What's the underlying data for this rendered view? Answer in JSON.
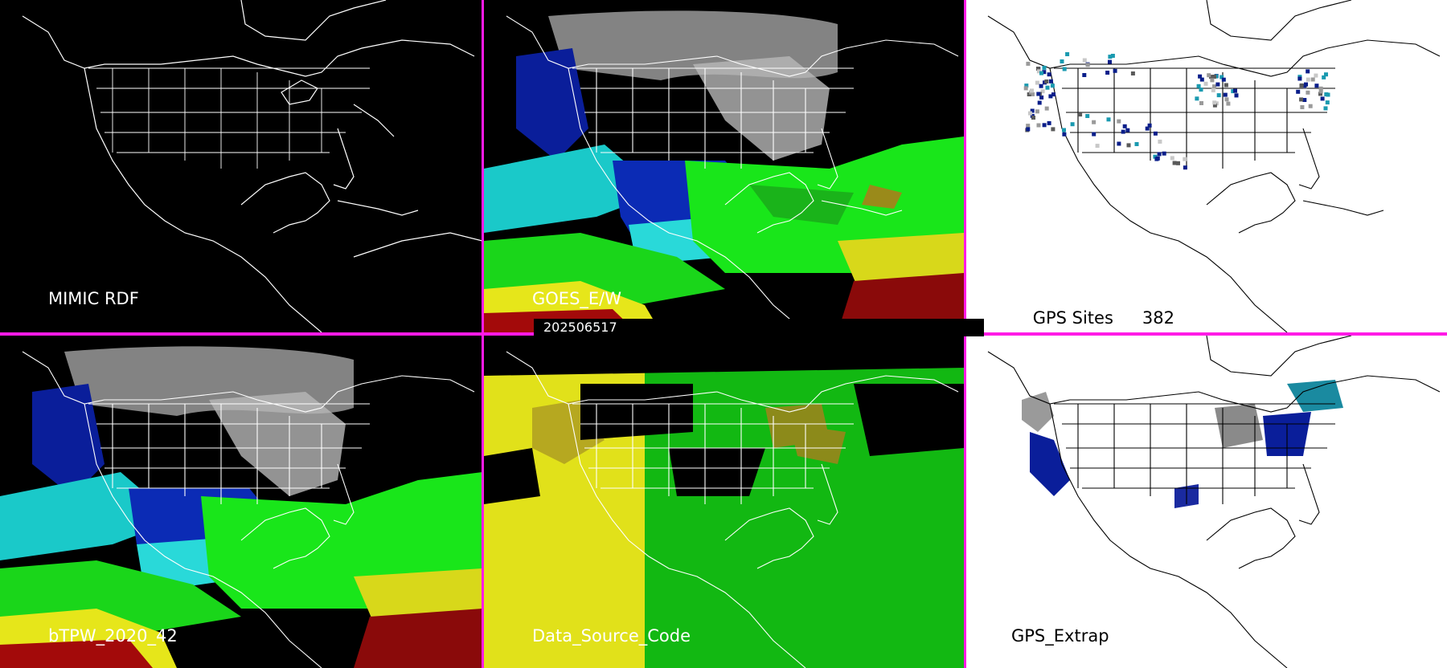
{
  "timestamp": "202506517",
  "colors": {
    "divider": "#ff1ae6",
    "dark_background": "#000000",
    "light_background": "#ffffff",
    "map_lines_on_dark": "#ffffff",
    "map_lines_on_light": "#000000"
  },
  "panels": [
    {
      "id": "rdf",
      "label": "MIMIC RDF",
      "background": "dark"
    },
    {
      "id": "goes",
      "label": "GOES_E/W",
      "background": "dark"
    },
    {
      "id": "gps_sites",
      "label": "GPS Sites",
      "count": "382",
      "background": "light"
    },
    {
      "id": "btpw",
      "label": "bTPW_2020_42",
      "background": "dark"
    },
    {
      "id": "source",
      "label": "Data_Source_Code",
      "background": "dark"
    },
    {
      "id": "gps_extrap",
      "label": "GPS_Extrap",
      "background": "light"
    }
  ]
}
